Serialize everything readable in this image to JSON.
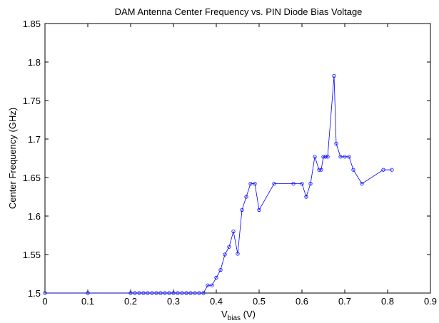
{
  "chart_data": {
    "type": "line",
    "title": "DAM Antenna Center Frequency vs. PIN Diode Bias Voltage",
    "xlabel_main": "V",
    "xlabel_sub": "bias",
    "xlabel_unit": " (V)",
    "ylabel": "Center Frequency (GHz)",
    "xlim": [
      0,
      0.9
    ],
    "ylim": [
      1.5,
      1.85
    ],
    "xticks": [
      "0",
      "0.1",
      "0.2",
      "0.3",
      "0.4",
      "0.5",
      "0.6",
      "0.7",
      "0.8",
      "0.9"
    ],
    "yticks": [
      "1.5",
      "1.55",
      "1.6",
      "1.65",
      "1.7",
      "1.75",
      "1.8",
      "1.85"
    ],
    "grid": false,
    "series": [
      {
        "color": "#0000ff",
        "marker": "circle",
        "x": [
          0,
          0.1,
          0.2,
          0.21,
          0.22,
          0.23,
          0.24,
          0.25,
          0.26,
          0.27,
          0.28,
          0.29,
          0.3,
          0.31,
          0.32,
          0.33,
          0.34,
          0.35,
          0.36,
          0.37,
          0.38,
          0.39,
          0.4,
          0.41,
          0.42,
          0.43,
          0.44,
          0.45,
          0.46,
          0.47,
          0.48,
          0.49,
          0.5,
          0.535,
          0.58,
          0.6,
          0.61,
          0.62,
          0.63,
          0.64,
          0.645,
          0.65,
          0.655,
          0.66,
          0.675,
          0.68,
          0.69,
          0.7,
          0.71,
          0.72,
          0.74,
          0.79,
          0.81
        ],
        "y": [
          1.5,
          1.5,
          1.5,
          1.5,
          1.5,
          1.5,
          1.5,
          1.5,
          1.5,
          1.5,
          1.5,
          1.5,
          1.5,
          1.5,
          1.5,
          1.5,
          1.5,
          1.5,
          1.5,
          1.5,
          1.51,
          1.51,
          1.52,
          1.53,
          1.55,
          1.56,
          1.58,
          1.551,
          1.608,
          1.625,
          1.642,
          1.642,
          1.608,
          1.642,
          1.642,
          1.642,
          1.625,
          1.642,
          1.677,
          1.66,
          1.66,
          1.677,
          1.677,
          1.677,
          1.782,
          1.694,
          1.677,
          1.677,
          1.677,
          1.66,
          1.642,
          1.66,
          1.66
        ]
      }
    ]
  }
}
